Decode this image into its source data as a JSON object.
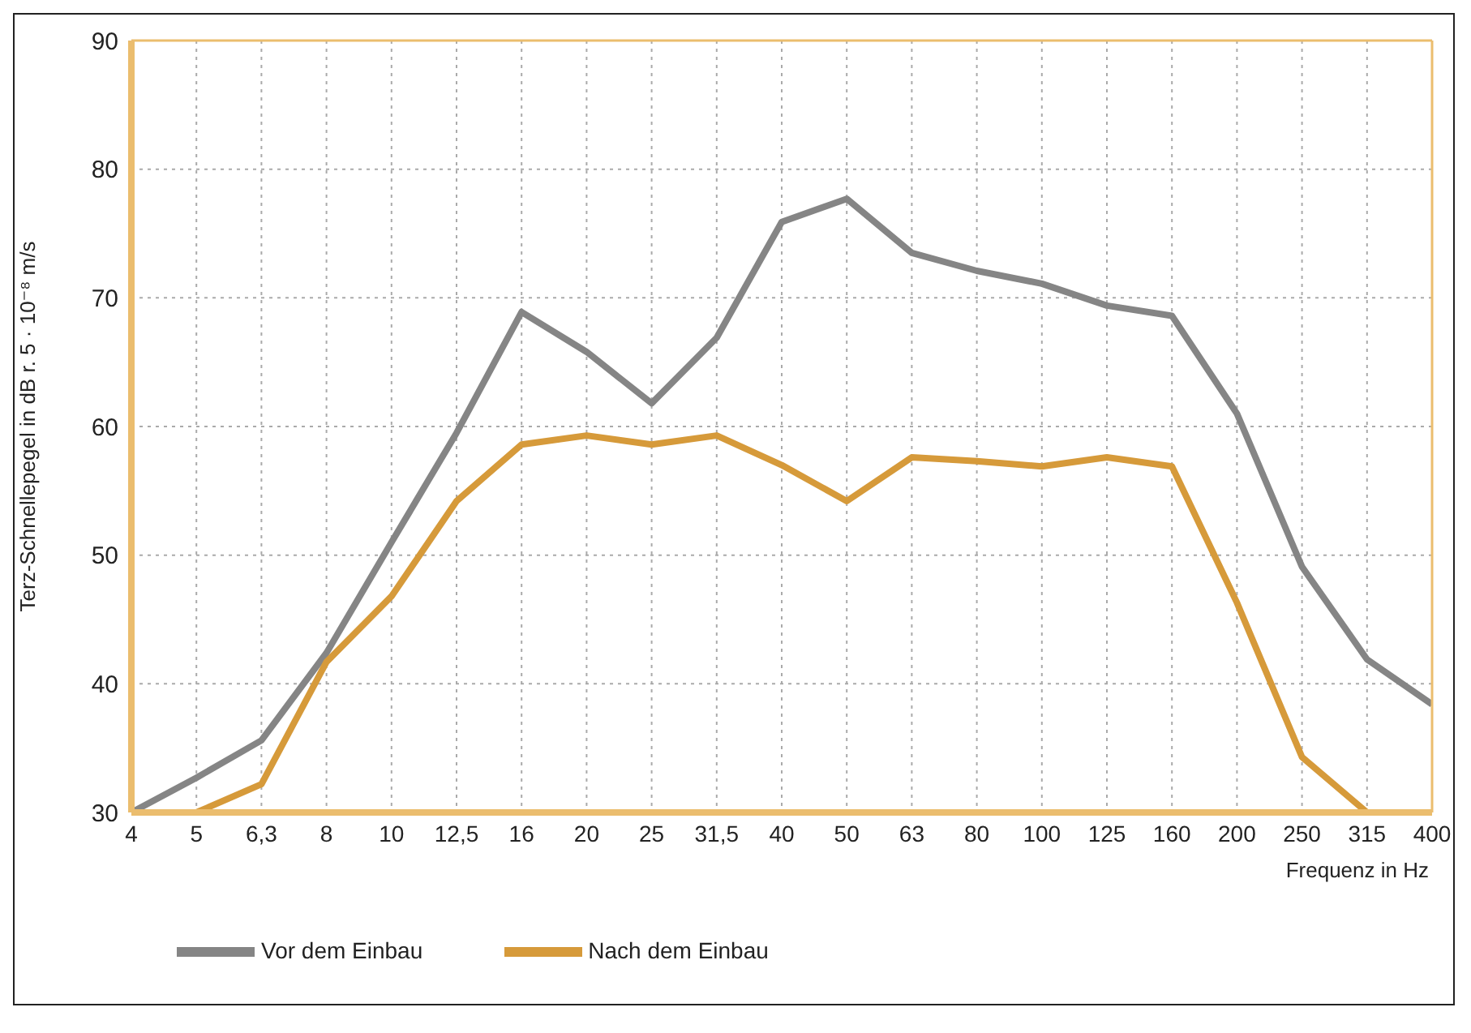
{
  "chart_data": {
    "type": "line",
    "xlabel": "Frequenz in Hz",
    "ylabel": "Terz-Schnellepegel in dB r. 5 · 10⁻⁸ m/s",
    "categories": [
      "4",
      "5",
      "6,3",
      "8",
      "10",
      "12,5",
      "16",
      "20",
      "25",
      "31,5",
      "40",
      "50",
      "63",
      "80",
      "100",
      "125",
      "160",
      "200",
      "250",
      "315",
      "400"
    ],
    "series": [
      {
        "name": "Vor dem Einbau",
        "color": "#858585",
        "values": [
          30,
          32.7,
          35.6,
          42.4,
          51,
          59.5,
          68.9,
          65.8,
          61.8,
          66.9,
          75.9,
          77.7,
          73.5,
          72.1,
          71.1,
          69.4,
          68.6,
          61,
          49.1,
          41.9,
          38.4
        ]
      },
      {
        "name": "Nach dem Einbau",
        "color": "#d69a3a",
        "values": [
          null,
          30,
          32.2,
          41.7,
          46.8,
          54.2,
          58.6,
          59.3,
          58.6,
          59.3,
          57,
          54.2,
          57.6,
          57.3,
          56.9,
          57.6,
          56.9,
          46.3,
          34.3,
          30,
          null
        ]
      }
    ],
    "ylim": [
      30,
      90
    ],
    "yticks": [
      30,
      40,
      50,
      60,
      70,
      80,
      90
    ],
    "grid": true,
    "legend": "bottom left",
    "marker": "none",
    "line_style": "solid"
  }
}
